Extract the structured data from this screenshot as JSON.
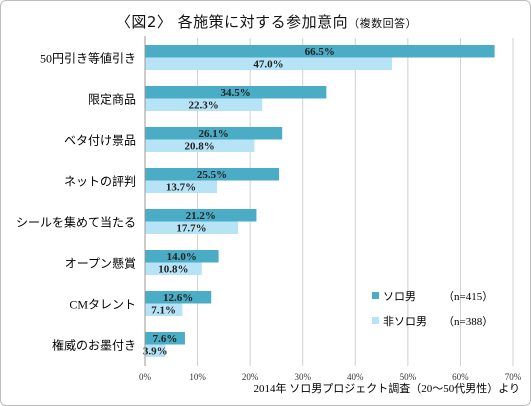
{
  "chart": {
    "title_main": "〈図2〉 各施策に対する参加意向",
    "title_note": "（複数回答）",
    "source": "2014年 ソロ男プロジェクト調査（20～50代男性）より",
    "legend": [
      {
        "name": "ソロ男",
        "n": "（n=415）"
      },
      {
        "name": "非ソロ男",
        "n": "（n=388）"
      }
    ]
  },
  "colors": {
    "solo": "#4bacc6",
    "nonsolo": "#b7e3f6",
    "grid": "#d0d0d0"
  },
  "chart_data": {
    "type": "bar",
    "orientation": "horizontal",
    "categories": [
      "50円引き等値引き",
      "限定商品",
      "ベタ付け景品",
      "ネットの評判",
      "シールを集めて当たる",
      "オープン懸賞",
      "CMタレント",
      "権威のお墨付き"
    ],
    "series": [
      {
        "name": "ソロ男",
        "values": [
          66.5,
          34.5,
          26.1,
          25.5,
          21.2,
          14.0,
          12.6,
          7.6
        ],
        "labels": [
          "66.5%",
          "34.5%",
          "26.1%",
          "25.5%",
          "21.2%",
          "14.0%",
          "12.6%",
          "7.6%"
        ]
      },
      {
        "name": "非ソロ男",
        "values": [
          47.0,
          22.3,
          20.8,
          13.7,
          17.7,
          10.8,
          7.1,
          3.9
        ],
        "labels": [
          "47.0%",
          "22.3%",
          "20.8%",
          "13.7%",
          "17.7%",
          "10.8%",
          "7.1%",
          "3.9%"
        ]
      }
    ],
    "xlim": [
      0,
      70
    ],
    "ticks": [
      "0%",
      "10%",
      "20%",
      "30%",
      "40%",
      "50%",
      "60%",
      "70%"
    ],
    "grid": true,
    "legend_position": "bottom-right"
  }
}
